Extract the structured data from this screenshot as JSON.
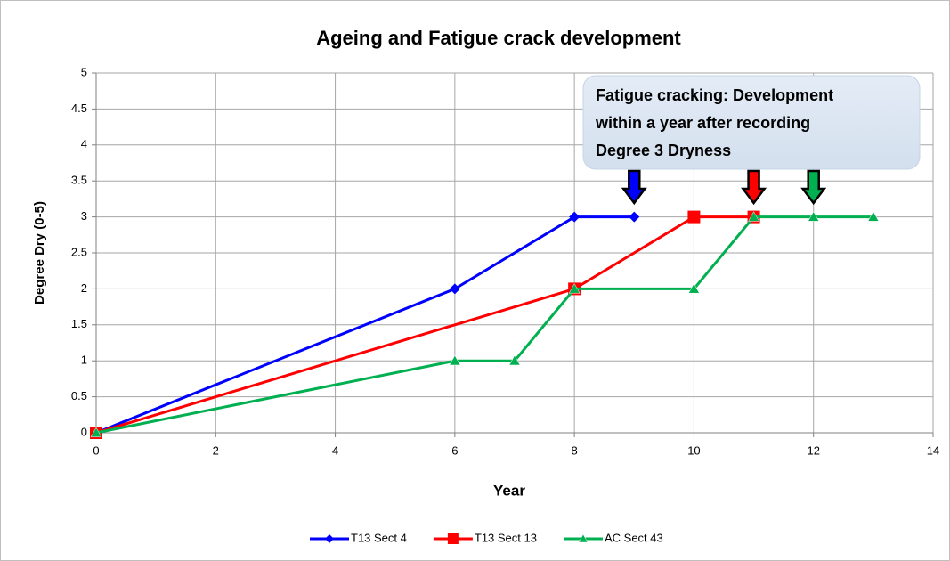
{
  "chart_data": {
    "type": "line",
    "title": "Ageing and Fatigue crack development",
    "xlabel": "Year",
    "ylabel": "Degree Dry (0-5)",
    "xlim": [
      0,
      14
    ],
    "xticks": [
      0,
      2,
      4,
      6,
      8,
      10,
      12,
      14
    ],
    "ylim": [
      0,
      5
    ],
    "yticks": [
      0,
      0.5,
      1,
      1.5,
      2,
      2.5,
      3,
      3.5,
      4,
      4.5,
      5
    ],
    "grid": true,
    "legend": "bottom",
    "series": [
      {
        "name": "T13 Sect 4",
        "color": "#0000ff",
        "marker": "diamond",
        "x": [
          0,
          6,
          8,
          9
        ],
        "values": [
          0,
          2,
          3,
          3
        ]
      },
      {
        "name": "T13 Sect 13",
        "color": "#ff0000",
        "marker": "square",
        "x": [
          0,
          8,
          10,
          11
        ],
        "values": [
          0,
          2,
          3,
          3
        ]
      },
      {
        "name": "AC Sect 43",
        "color": "#00b050",
        "marker": "triangle",
        "x": [
          0,
          6,
          7,
          8,
          10,
          11,
          12,
          13
        ],
        "values": [
          0,
          1,
          1,
          2,
          2,
          3,
          3,
          3
        ]
      }
    ],
    "annotation": {
      "lines": [
        "Fatigue cracking: Development",
        "within a year after recording",
        "Degree 3 Dryness"
      ]
    },
    "arrows": [
      {
        "x": 9,
        "color": "#0000ff"
      },
      {
        "x": 11,
        "color": "#ff0000"
      },
      {
        "x": 12,
        "color": "#00b050"
      }
    ]
  }
}
